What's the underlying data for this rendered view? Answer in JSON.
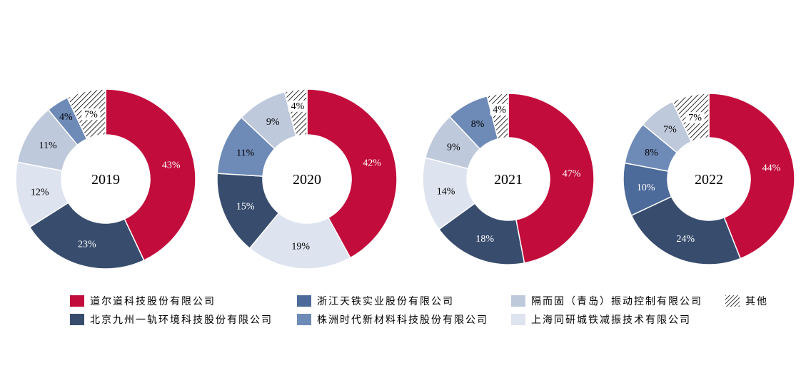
{
  "chart_data": {
    "type": "pie",
    "donut": true,
    "series_names": [
      "道尔道科技股份有限公司",
      "北京九州一轨环境科技股份有限公司",
      "浙江天铁实业股份有限公司",
      "株洲时代新材料科技股份有限公司",
      "隔而固（青岛）振动控制有限公司",
      "上海同研城铁减振技术有限公司",
      "其他"
    ],
    "colors": [
      "#c20c3b",
      "#384d6e",
      "#4c6a9a",
      "#6e8ab7",
      "#bfc9dc",
      "#dde3ef",
      "hatch"
    ],
    "charts": [
      {
        "center_label": "2019",
        "labels": [
          "43%",
          "23%",
          "12%",
          "11%",
          "4%",
          "7%"
        ],
        "slices": [
          {
            "series": 0,
            "value": 43
          },
          {
            "series": 1,
            "value": 23
          },
          {
            "series": 5,
            "value": 12
          },
          {
            "series": 4,
            "value": 11
          },
          {
            "series": 3,
            "value": 4
          },
          {
            "series": 6,
            "value": 7
          }
        ]
      },
      {
        "center_label": "2020",
        "labels": [
          "42%",
          "19%",
          "15%",
          "11%",
          "9%",
          "4%"
        ],
        "slices": [
          {
            "series": 0,
            "value": 42
          },
          {
            "series": 5,
            "value": 19
          },
          {
            "series": 1,
            "value": 15
          },
          {
            "series": 3,
            "value": 11
          },
          {
            "series": 4,
            "value": 9
          },
          {
            "series": 6,
            "value": 4
          }
        ]
      },
      {
        "center_label": "2021",
        "labels": [
          "47%",
          "18%",
          "14%",
          "9%",
          "8%",
          "4%"
        ],
        "slices": [
          {
            "series": 0,
            "value": 47
          },
          {
            "series": 1,
            "value": 18
          },
          {
            "series": 5,
            "value": 14
          },
          {
            "series": 4,
            "value": 9
          },
          {
            "series": 3,
            "value": 8
          },
          {
            "series": 6,
            "value": 4
          }
        ]
      },
      {
        "center_label": "2022",
        "labels": [
          "44%",
          "24%",
          "10%",
          "8%",
          "7%",
          "7%"
        ],
        "slices": [
          {
            "series": 0,
            "value": 44
          },
          {
            "series": 1,
            "value": 24
          },
          {
            "series": 2,
            "value": 10
          },
          {
            "series": 3,
            "value": 8
          },
          {
            "series": 4,
            "value": 7
          },
          {
            "series": 6,
            "value": 7
          }
        ]
      }
    ],
    "legend_position": "bottom"
  }
}
